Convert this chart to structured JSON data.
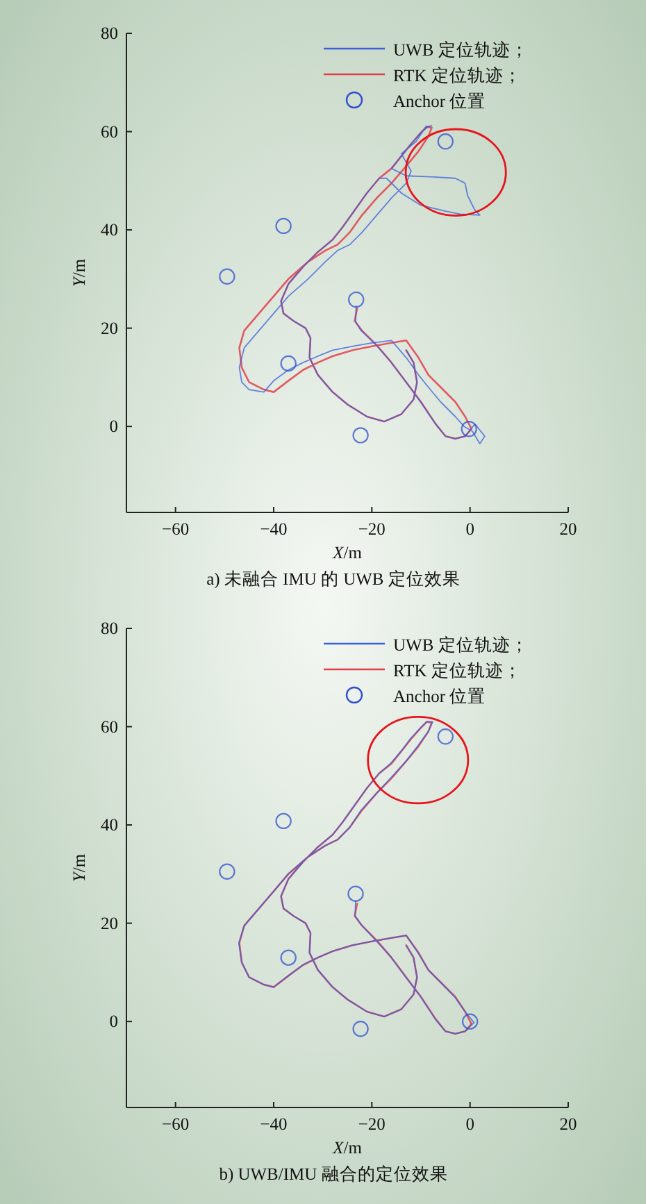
{
  "chart_data": [
    {
      "type": "line",
      "title": "a) 未融合 IMU 的 UWB 定位效果",
      "xlabel": "X/m",
      "ylabel": "Y/m",
      "xlim": [
        -70,
        20
      ],
      "ylim": [
        -17.5,
        80
      ],
      "xticks": [
        -60,
        -40,
        -20,
        0,
        20
      ],
      "yticks": [
        0,
        20,
        40,
        60,
        80
      ],
      "grid": false,
      "legend": "top right",
      "series": [
        {
          "name": "RTK 定位轨迹；",
          "color": "#e0404a",
          "x": [
            -23,
            -23.5,
            -22,
            -19,
            -16,
            -13,
            -10,
            -7,
            -5,
            -3,
            -1,
            0.3,
            -1,
            -3,
            -6,
            -8.5,
            -10.5,
            -13,
            -16,
            -20,
            -24,
            -28,
            -31,
            -34,
            -37,
            -40,
            -42,
            -45,
            -46.5,
            -47,
            -46,
            -43,
            -40,
            -37,
            -33,
            -29.5,
            -27,
            -24.5,
            -22,
            -19,
            -16,
            -13,
            -10.5,
            -8.5,
            -7.8,
            -8.8,
            -10,
            -12,
            -14,
            -16,
            -18.5,
            -21,
            -23.5,
            -26,
            -28,
            -31,
            -34,
            -37,
            -38.5,
            -38,
            -36,
            -33.5,
            -32.5,
            -32.7,
            -31,
            -28,
            -25,
            -21,
            -17.5,
            -14,
            -11.5,
            -10.8,
            -11.5,
            -13
          ],
          "values": [
            24,
            21.5,
            19.5,
            16.5,
            13,
            9,
            5,
            0.5,
            -2,
            -2.5,
            -2,
            -0.5,
            2,
            5,
            8,
            10.5,
            14,
            17.5,
            17,
            16.3,
            15.5,
            14.3,
            13,
            11.5,
            9.3,
            7,
            7.5,
            9,
            12,
            16,
            19.5,
            23,
            26.5,
            30,
            33.5,
            35.8,
            37,
            39.5,
            43,
            46.5,
            49.5,
            53,
            56,
            59,
            60.8,
            61,
            59.8,
            57.5,
            55,
            52.5,
            50.5,
            47.5,
            44,
            40.5,
            38,
            35.5,
            32.5,
            29,
            25.5,
            23,
            21.5,
            20,
            18,
            14,
            10.5,
            7,
            4.5,
            2,
            1,
            2.5,
            5.5,
            9,
            13,
            15.5
          ]
        },
        {
          "name": "UWB 定位轨迹；",
          "color": "#3b5fd9",
          "x": [
            -23.2,
            -23.3,
            -22.2,
            -19,
            -16.2,
            -13,
            -10.1,
            -7,
            -5,
            -3,
            -1,
            1,
            3,
            2,
            0.5,
            -1.2,
            -3,
            -6,
            -8.5,
            -10.5,
            -13,
            -16,
            -20,
            -24,
            -28,
            -31,
            -34,
            -37,
            -40,
            -42,
            -45,
            -46.5,
            -47,
            -46,
            -43,
            -40,
            -37,
            -33,
            -29.5,
            -27,
            -24.5,
            -22,
            -19,
            -16,
            -13,
            -12,
            -14,
            -11,
            -9,
            -7.8,
            -8.8,
            -10,
            -12,
            -14,
            -16,
            -13,
            -8,
            -3,
            -1,
            -0.5,
            1,
            2,
            -2,
            -5,
            -10,
            -14,
            -17,
            -18.5,
            -21,
            -23.5,
            -26,
            -28,
            -31,
            -34,
            -37,
            -38.5,
            -38,
            -36,
            -33.5,
            -32.5,
            -32.7,
            -31,
            -28,
            -25,
            -21,
            -17.5,
            -14,
            -11.5,
            -10.8,
            -11.5,
            -13
          ],
          "values": [
            24.5,
            21.3,
            19.5,
            16.5,
            13.2,
            9,
            5,
            0.5,
            -2,
            -2.5,
            -2,
            0.5,
            -2,
            -3.5,
            -1,
            0,
            2,
            5,
            8,
            10.5,
            14,
            17.5,
            17,
            16.3,
            15.5,
            14.3,
            13,
            11.5,
            9.3,
            7,
            7.5,
            9,
            12,
            16,
            19.5,
            23,
            26.5,
            30,
            33.5,
            35.8,
            37,
            39.5,
            43,
            46.5,
            49.5,
            52,
            55.5,
            58,
            61,
            61.2,
            60.8,
            59.8,
            57.5,
            55,
            52.5,
            51,
            50.8,
            50.5,
            49.5,
            47,
            44,
            43,
            43.2,
            43.8,
            45,
            47.5,
            50.5,
            50.5,
            47.5,
            44,
            40.5,
            38,
            35.5,
            32.5,
            29,
            25.5,
            23,
            21.5,
            20,
            18,
            14,
            10.5,
            7,
            4.5,
            2,
            1,
            2.5,
            5.5,
            9,
            13,
            15.5
          ]
        },
        {
          "name": "Anchor 位置",
          "type": "scatter",
          "marker": "circle",
          "color": "#3050d0",
          "x": [
            -49.5,
            -38,
            -37,
            -23.2,
            -22.3,
            -0.2,
            -5
          ],
          "values": [
            30.5,
            40.8,
            12.8,
            25.8,
            -1.8,
            -0.5,
            58
          ]
        }
      ]
    },
    {
      "type": "line",
      "title": "b) UWB/IMU 融合的定位效果",
      "xlabel": "X/m",
      "ylabel": "Y/m",
      "xlim": [
        -70,
        20
      ],
      "ylim": [
        -17.5,
        80
      ],
      "xticks": [
        -60,
        -40,
        -20,
        0,
        20
      ],
      "yticks": [
        0,
        20,
        40,
        60,
        80
      ],
      "grid": false,
      "legend": "top right",
      "series": [
        {
          "name": "RTK 定位轨迹；",
          "color": "#e0404a",
          "x": [
            -23,
            -23.5,
            -22,
            -19,
            -16,
            -13,
            -10,
            -7,
            -5,
            -3,
            -1,
            0.3,
            -1,
            -3,
            -6,
            -8.5,
            -10.5,
            -13,
            -16,
            -20,
            -24,
            -28,
            -31,
            -34,
            -37,
            -40,
            -42,
            -45,
            -46.5,
            -47,
            -46,
            -43,
            -40,
            -37,
            -33,
            -29.5,
            -27,
            -24.5,
            -22,
            -19,
            -16,
            -13,
            -10.5,
            -8.5,
            -7.8,
            -8.8,
            -10,
            -12,
            -14,
            -16,
            -18.5,
            -21,
            -23.5,
            -26,
            -28,
            -31,
            -34,
            -37,
            -38.5,
            -38,
            -36,
            -33.5,
            -32.5,
            -32.7,
            -31,
            -28,
            -25,
            -21,
            -17.5,
            -14,
            -11.5,
            -10.8,
            -11.5,
            -13
          ],
          "values": [
            24,
            21.5,
            19.5,
            16.5,
            13,
            9,
            5,
            0.5,
            -2,
            -2.5,
            -2,
            -0.5,
            2,
            5,
            8,
            10.5,
            14,
            17.5,
            17,
            16.3,
            15.5,
            14.3,
            13,
            11.5,
            9.3,
            7,
            7.5,
            9,
            12,
            16,
            19.5,
            23,
            26.5,
            30,
            33.5,
            35.8,
            37,
            39.5,
            43,
            46.5,
            49.5,
            53,
            56,
            59,
            60.8,
            61,
            59.8,
            57.5,
            55,
            52.5,
            50.5,
            47.5,
            44,
            40.5,
            38,
            35.5,
            32.5,
            29,
            25.5,
            23,
            21.5,
            20,
            18,
            14,
            10.5,
            7,
            4.5,
            2,
            1,
            2.5,
            5.5,
            9,
            13,
            15.5
          ]
        },
        {
          "name": "UWB 定位轨迹；",
          "color": "#3b5fd9",
          "x": [
            -23.3,
            -23.4,
            -22,
            -19.2,
            -16,
            -13.1,
            -10,
            -7.1,
            -5,
            -3,
            -1,
            0.8,
            -1,
            -3.1,
            -6,
            -8.5,
            -10.6,
            -13,
            -16,
            -20,
            -24,
            -28,
            -31,
            -34.1,
            -37,
            -40,
            -42,
            -45,
            -46.5,
            -47.1,
            -46,
            -43,
            -40,
            -37.1,
            -33,
            -29.5,
            -27,
            -24.5,
            -22.2,
            -19,
            -16.2,
            -13,
            -10.7,
            -8.5,
            -7.6,
            -8.8,
            -10,
            -12.2,
            -14,
            -16.2,
            -18.5,
            -21,
            -23.5,
            -26,
            -28,
            -31,
            -34,
            -37,
            -38.5,
            -38,
            -36,
            -33.5,
            -32.5,
            -32.7,
            -31,
            -28,
            -25,
            -21,
            -17.5,
            -14,
            -11.5,
            -10.8,
            -11.5,
            -13
          ],
          "values": [
            24.6,
            21.5,
            19.5,
            16.5,
            13,
            9,
            5,
            0.5,
            -2,
            -2.5,
            -2,
            -0.2,
            2,
            5,
            8,
            10.5,
            14,
            17.5,
            17,
            16.3,
            15.5,
            14.3,
            13,
            11.5,
            9.3,
            7,
            7.5,
            9,
            12,
            16,
            19.5,
            23,
            26.5,
            30,
            33.5,
            35.8,
            37,
            39.5,
            43,
            46.5,
            49.5,
            53,
            56,
            59,
            61,
            61,
            59.8,
            57.5,
            55,
            52.5,
            50.5,
            47.5,
            44,
            40.5,
            38,
            35.5,
            32.5,
            29,
            25.5,
            23,
            21.5,
            20,
            18,
            14,
            10.5,
            7,
            4.5,
            2,
            1,
            2.5,
            5.5,
            9,
            13,
            15.5
          ]
        },
        {
          "name": "Anchor 位置",
          "type": "scatter",
          "marker": "circle",
          "color": "#3050d0",
          "x": [
            -49.5,
            -38,
            -37,
            -23.3,
            -22.3,
            0,
            -5
          ],
          "values": [
            30.5,
            40.8,
            13,
            26,
            -1.5,
            0,
            58
          ]
        }
      ]
    }
  ]
}
